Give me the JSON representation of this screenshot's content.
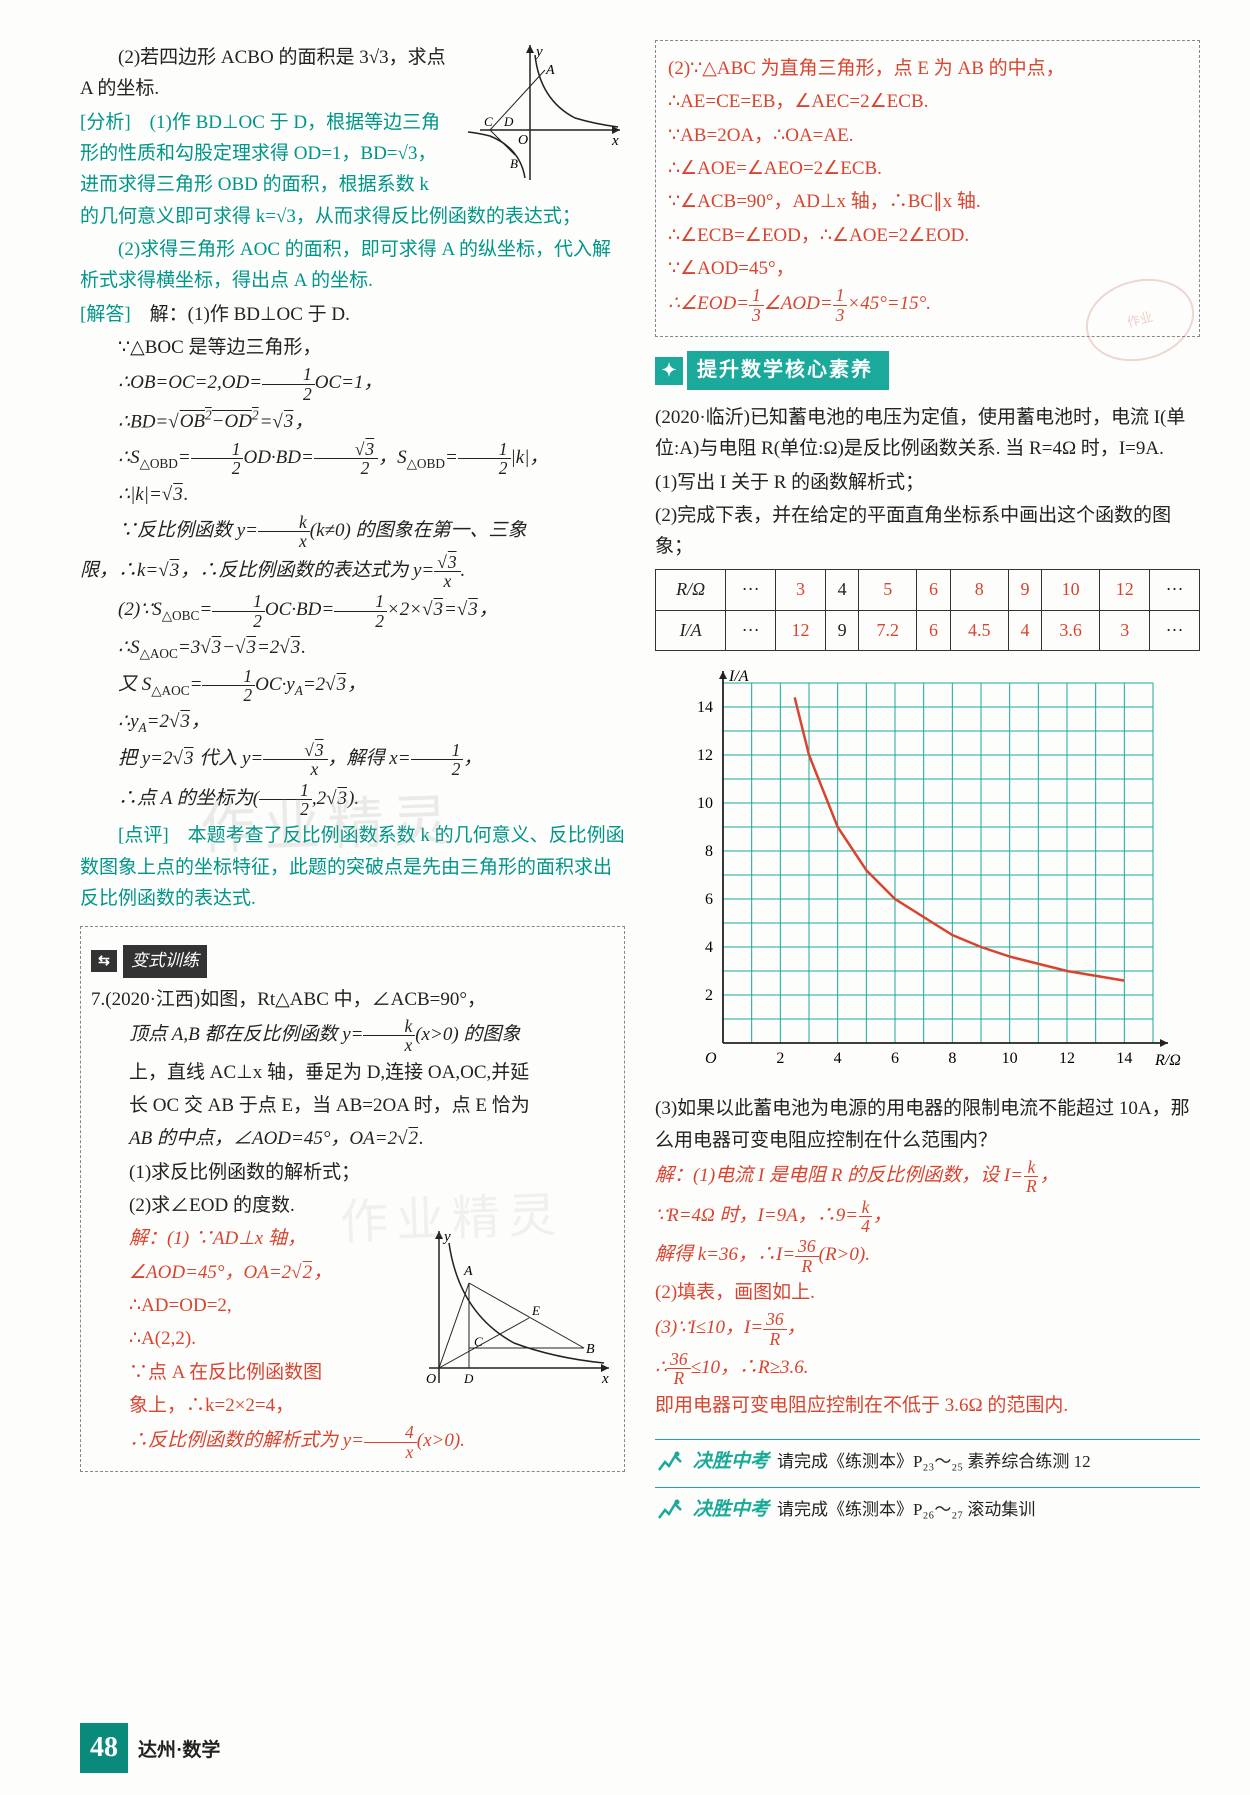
{
  "page_number": "48",
  "page_label": "达州·数学",
  "watermark_text": "作业精灵",
  "left": {
    "problem_2": "(2)若四边形 ACBO 的面积是 3√3，求点 A 的坐标.",
    "analysis_label": "[分析]",
    "analysis_1": "(1)作 BD⊥OC 于 D，根据等边三角形的性质和勾股定理求得 OD=1，BD=√3，进而求得三角形 OBD 的面积，根据系数 k 的几何意义即可求得 k=√3，从而求得反比例函数的表达式；",
    "analysis_2": "(2)求得三角形 AOC 的面积，即可求得 A 的纵坐标，代入解析式求得横坐标，得出点 A 的坐标.",
    "answer_label": "[解答]",
    "answer_intro": "解：(1)作 BD⊥OC 于 D.",
    "sol_lines": [
      "∵△BOC 是等边三角形，",
      "∴OB=OC=2,OD= ½ OC=1，",
      "∴BD=√(OB²−OD²)=√3，",
      "∴S△OBD = ½ OD·BD = √3/2 , S△OBD = ½|k|，",
      "∴|k|=√3.",
      "∵反比例函数 y = k/x (k≠0) 的图象在第一、三象",
      "限，∴k=√3，∴反比例函数的表达式为 y = √3/x .",
      "(2)∵S△OBC = ½ OC·BD = ½×2×√3 = √3，",
      "∴S△AOC = 3√3 − √3 = 2√3.",
      "又 S△AOC = ½ OC·yA = 2√3，",
      "∴yA = 2√3，",
      "把 y=2√3 代入 y=√3/x，解得 x = ½，",
      "∴点 A 的坐标为 (½, 2√3)."
    ],
    "review_label": "[点评]",
    "review_text": "本题考查了反比例函数系数 k 的几何意义、反比例函数图象上点的坐标特征，此题的突破点是先由三角形的面积求出反比例函数的表达式.",
    "variant_label": "变式训练",
    "q7_lines": [
      "7.(2020·江西)如图，Rt△ABC 中，∠ACB=90°，",
      "顶点 A,B 都在反比例函数 y = k/x (x>0) 的图象",
      "上，直线 AC⊥x 轴，垂足为 D,连接 OA,OC,并延",
      "长 OC 交 AB 于点 E，当 AB=2OA 时，点 E 恰为",
      "AB 的中点，∠AOD=45°，OA=2√2.",
      "(1)求反比例函数的解析式；",
      "(2)求∠EOD 的度数."
    ],
    "q7_sol": [
      "解：(1) ∵AD⊥x 轴，",
      "∠AOD=45°，OA=2√2，",
      "∴AD=OD=2,",
      "∴A(2,2).",
      "∵点 A 在反比例函数图",
      "象上，∴k=2×2=4，",
      "∴反比例函数的解析式为 y = 4/x (x>0)."
    ],
    "graph1": {
      "type": "curve",
      "axes_color": "#222",
      "curve_color": "#222",
      "labels": [
        "y",
        "x",
        "O",
        "A",
        "B",
        "C",
        "D"
      ]
    },
    "graph2": {
      "type": "curve",
      "axes_color": "#222",
      "curve_color": "#222",
      "labels": [
        "y",
        "x",
        "O",
        "A",
        "B",
        "C",
        "D",
        "E"
      ]
    }
  },
  "right": {
    "box_lines": [
      "(2)∵△ABC 为直角三角形，点 E 为 AB 的中点，",
      "∴AE=CE=EB，∠AEC=2∠ECB.",
      "∵AB=2OA，∴OA=AE.",
      "∴∠AOE=∠AEO=2∠ECB.",
      "∵∠ACB=90°，AD⊥x 轴，∴BC∥x 轴.",
      "∴∠ECB=∠EOD，∴∠AOE=2∠EOD.",
      "∵∠AOD=45°，",
      "∴∠EOD= ⅓∠AOD= ⅓×45°=15°."
    ],
    "banner": "提升数学核心素养",
    "problem_intro": "(2020·临沂)已知蓄电池的电压为定值，使用蓄电池时，电流 I(单位:A)与电阻 R(单位:Ω)是反比例函数关系. 当 R=4Ω 时，I=9A.",
    "q1": "(1)写出 I 关于 R 的函数解析式；",
    "q2": "(2)完成下表，并在给定的平面直角坐标系中画出这个函数的图象；",
    "table": {
      "headers": [
        "R/Ω",
        "···",
        "3",
        "4",
        "5",
        "6",
        "8",
        "9",
        "10",
        "12",
        "···"
      ],
      "row2_label": "I/A",
      "row2_dots": "···",
      "row2_values": [
        "12",
        "9",
        "7.2",
        "6",
        "4.5",
        "4",
        "3.6",
        "3"
      ],
      "row2_end": "···"
    },
    "chart": {
      "type": "line",
      "x_label": "R/Ω",
      "y_label": "I/A",
      "xlim": [
        0,
        15
      ],
      "ylim": [
        0,
        15
      ],
      "xtick_step": 2,
      "ytick_step": 2,
      "grid_color": "#1aa99a",
      "grid_width": 1,
      "axes_color": "#222",
      "curve_color": "#d94430",
      "curve_width": 2.5,
      "font_size": 16,
      "data_points": [
        [
          2.5,
          14.4
        ],
        [
          3,
          12
        ],
        [
          4,
          9
        ],
        [
          5,
          7.2
        ],
        [
          6,
          6
        ],
        [
          8,
          4.5
        ],
        [
          9,
          4
        ],
        [
          10,
          3.6
        ],
        [
          12,
          3
        ],
        [
          14,
          2.6
        ]
      ],
      "background_color": "#ffffff"
    },
    "q3": "(3)如果以此蓄电池为电源的用电器的限制电流不能超过 10A，那么用电器可变电阻应控制在什么范围内？",
    "sol": [
      "解：(1)电流 I 是电阻 R 的反比例函数，设 I = k/R，",
      "∵R=4Ω 时，I=9A，∴9 = k/4，",
      "解得 k=36，∴I = 36/R (R>0).",
      "(2)填表，画图如上.",
      "(3)∵I≤10，I = 36/R，",
      "∴ 36/R ≤10，∴R≥3.6.",
      "即用电器可变电阻应控制在不低于 3.6Ω 的范围内."
    ],
    "exam1": {
      "title": "决胜中考",
      "desc": "请完成《练测本》P₂₃～₂₅ 素养综合练测 12"
    },
    "exam2": {
      "title": "决胜中考",
      "desc": "请完成《练测本》P₂₆～₂₇ 滚动集训"
    }
  }
}
